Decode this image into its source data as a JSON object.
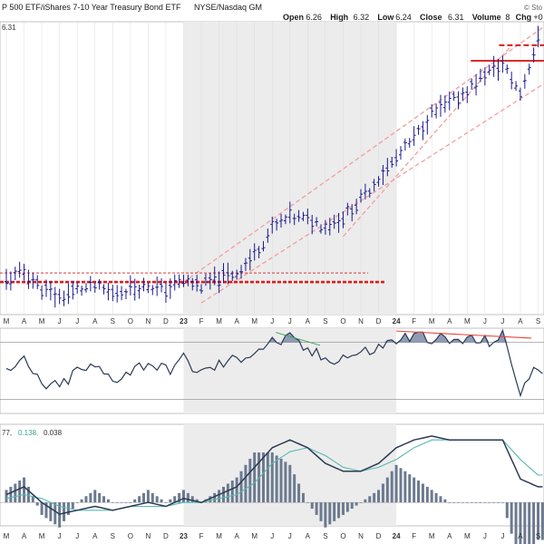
{
  "header": {
    "title": "P 500 ETF/iShares 7-10 Year Treasury Bond ETF",
    "exchange": "NYSE/Nasdaq GM",
    "watermark": "© Sto",
    "ohlc": [
      {
        "label": "Open",
        "value": "6.26"
      },
      {
        "label": "High",
        "value": "6.32"
      },
      {
        "label": "Low",
        "value": "6.24"
      },
      {
        "label": "Close",
        "value": "6.31"
      },
      {
        "label": "Volume",
        "value": "8"
      },
      {
        "label": "Chg",
        "value": "+0"
      }
    ],
    "price_tag": "6.31"
  },
  "x_labels": [
    "M",
    "A",
    "M",
    "J",
    "J",
    "A",
    "S",
    "O",
    "N",
    "D",
    "23",
    "F",
    "M",
    "A",
    "M",
    "J",
    "J",
    "A",
    "S",
    "O",
    "N",
    "D",
    "24",
    "F",
    "M",
    "A",
    "M",
    "J",
    "J",
    "A",
    "S"
  ],
  "x_label_bold": [
    "23",
    "24"
  ],
  "macd_legend": {
    "prefix": "77,",
    "signal": "0.138,",
    "hist": "0.038"
  },
  "colors": {
    "up_bar": "#1a1a8c",
    "price_series": "#1a1a8c",
    "support_resistance": "#d91e1e",
    "channel": "#f0a0a0",
    "rsi_line": "#2b3a55",
    "rsi_fill": "#8f9cb4",
    "divergence": "#e8433a",
    "rsi_divergence_green": "#3aa35a",
    "macd_line": "#2b3a55",
    "macd_signal": "#56b8b0",
    "macd_hist": "#6c7a90",
    "shade": "#ececec",
    "grid": "#dddddd"
  },
  "chart_data": [
    {
      "type": "bar",
      "panel": "price",
      "title": "",
      "x": [
        "Mar 2022",
        "Apr 2022",
        "May 2022",
        "Jun 2022",
        "Jul 2022",
        "Aug 2022",
        "Sep 2022",
        "Oct 2022",
        "Nov 2022",
        "Dec 2022",
        "Jan 2023",
        "Feb 2023",
        "Mar 2023",
        "Apr 2023",
        "May 2023",
        "Jun 2023",
        "Jul 2023",
        "Aug 2023",
        "Sep 2023",
        "Oct 2023",
        "Nov 2023",
        "Dec 2023",
        "Jan 2024",
        "Feb 2024",
        "Mar 2024",
        "Apr 2024",
        "May 2024",
        "Jun 2024",
        "Jul 2024",
        "Aug 2024",
        "Sep 2024"
      ],
      "close": [
        4.46,
        4.53,
        4.4,
        4.33,
        4.39,
        4.41,
        4.36,
        4.4,
        4.42,
        4.39,
        4.46,
        4.42,
        4.48,
        4.52,
        4.66,
        4.86,
        4.95,
        4.93,
        4.88,
        4.95,
        5.08,
        5.25,
        5.4,
        5.55,
        5.74,
        5.82,
        5.92,
        6.05,
        6.12,
        5.9,
        6.31
      ],
      "ylim": [
        4.2,
        6.45
      ],
      "last_value": 6.31,
      "support_lines": [
        4.52,
        4.45
      ],
      "resistance_lines": [
        6.27,
        6.15
      ],
      "channel_lines": [
        {
          "from": [
            "Jan 2023",
            4.45
          ],
          "to": [
            "Sep 2024",
            6.43
          ]
        },
        {
          "from": [
            "Feb 2023",
            4.29
          ],
          "to": [
            "Sep 2024",
            5.99
          ]
        },
        {
          "from": [
            "Oct 2023",
            4.8
          ],
          "to": [
            "Jul 2024",
            6.27
          ]
        }
      ]
    },
    {
      "type": "line",
      "panel": "rsi",
      "title": "",
      "x": [
        "Mar 2022",
        "Apr 2022",
        "May 2022",
        "Jun 2022",
        "Jul 2022",
        "Aug 2022",
        "Sep 2022",
        "Oct 2022",
        "Nov 2022",
        "Dec 2022",
        "Jan 2023",
        "Feb 2023",
        "Mar 2023",
        "Apr 2023",
        "May 2023",
        "Jun 2023",
        "Jul 2023",
        "Aug 2023",
        "Sep 2023",
        "Oct 2023",
        "Nov 2023",
        "Dec 2023",
        "Jan 2024",
        "Feb 2024",
        "Mar 2024",
        "Apr 2024",
        "May 2024",
        "Jun 2024",
        "Jul 2024",
        "Aug 2024",
        "Sep 2024"
      ],
      "values": [
        48,
        56,
        40,
        38,
        50,
        52,
        44,
        50,
        56,
        50,
        58,
        48,
        54,
        58,
        64,
        70,
        72,
        64,
        58,
        60,
        62,
        66,
        72,
        74,
        74,
        70,
        72,
        70,
        74,
        36,
        52
      ],
      "ylim": [
        20,
        80
      ],
      "levels": [
        70,
        30
      ]
    },
    {
      "type": "line",
      "panel": "macd",
      "title": "",
      "x": [
        "Mar 2022",
        "Apr 2022",
        "May 2022",
        "Jun 2022",
        "Jul 2022",
        "Aug 2022",
        "Sep 2022",
        "Oct 2022",
        "Nov 2022",
        "Dec 2022",
        "Jan 2023",
        "Feb 2023",
        "Mar 2023",
        "Apr 2023",
        "May 2023",
        "Jun 2023",
        "Jul 2023",
        "Aug 2023",
        "Sep 2023",
        "Oct 2023",
        "Nov 2023",
        "Dec 2023",
        "Jan 2024",
        "Feb 2024",
        "Mar 2024",
        "Apr 2024",
        "May 2024",
        "Jun 2024",
        "Jul 2024",
        "Aug 2024",
        "Sep 2024"
      ],
      "series": [
        {
          "values": [
            0.02,
            0.04,
            0.0,
            -0.03,
            -0.02,
            -0.01,
            -0.02,
            -0.01,
            0.0,
            -0.01,
            0.01,
            0.0,
            0.02,
            0.04,
            0.09,
            0.14,
            0.16,
            0.14,
            0.1,
            0.08,
            0.08,
            0.1,
            0.14,
            0.16,
            0.17,
            0.16,
            0.16,
            0.16,
            0.16,
            0.06,
            0.04
          ]
        },
        {
          "values": [
            0.01,
            0.02,
            0.01,
            -0.01,
            -0.02,
            -0.02,
            -0.02,
            -0.01,
            -0.01,
            -0.01,
            0.0,
            0.0,
            0.01,
            0.02,
            0.05,
            0.1,
            0.13,
            0.14,
            0.12,
            0.09,
            0.08,
            0.09,
            0.11,
            0.14,
            0.16,
            0.16,
            0.16,
            0.16,
            0.16,
            0.11,
            0.07
          ]
        }
      ],
      "ylim": [
        -0.06,
        0.2
      ],
      "zero_line": 0
    }
  ]
}
